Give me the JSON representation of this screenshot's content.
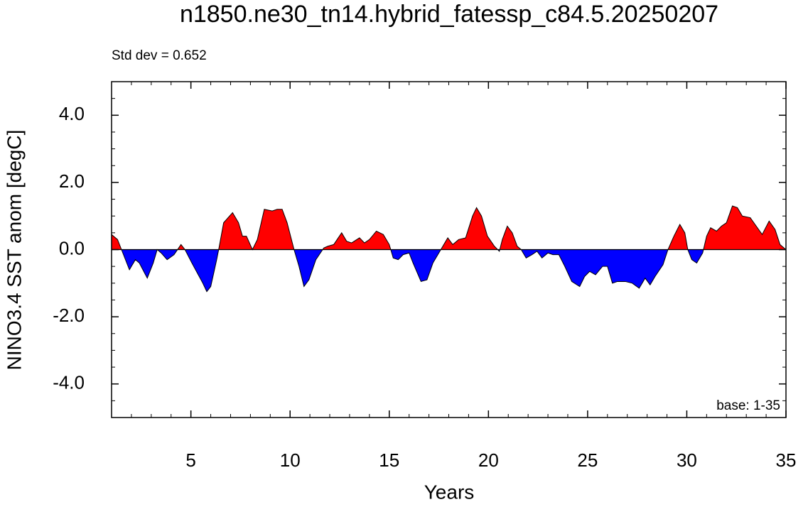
{
  "chart_data": {
    "type": "area",
    "title": "n1850.ne30_tn14.hybrid_fatessp_c84.5.20250207",
    "subtitle": "Std dev = 0.652",
    "annotation": "base: 1-35",
    "x_label": "Years",
    "y_label": "NINO3.4 SST anom [degC]",
    "positive_color": "#ff0000",
    "negative_color": "#0000ff",
    "xlim": [
      1,
      35
    ],
    "xticks": [
      5,
      10,
      15,
      20,
      25,
      30,
      35
    ],
    "ylim": [
      -5,
      5
    ],
    "yticks": [
      {
        "value": -4,
        "label": "-4.0"
      },
      {
        "value": -2,
        "label": "-2.0"
      },
      {
        "value": 0,
        "label": "0.0"
      },
      {
        "value": 2,
        "label": "2.0"
      },
      {
        "value": 4,
        "label": "4.0"
      }
    ],
    "x": [
      1.0,
      1.3,
      1.5,
      1.9,
      2.2,
      2.4,
      2.8,
      3.1,
      3.3,
      3.5,
      3.8,
      4.15,
      4.5,
      4.7,
      5.05,
      5.6,
      5.8,
      6.0,
      6.3,
      6.4,
      6.65,
      7.1,
      7.4,
      7.6,
      7.8,
      8.1,
      8.35,
      8.7,
      9.1,
      9.35,
      9.6,
      9.85,
      10.2,
      10.45,
      10.7,
      10.95,
      11.3,
      11.7,
      11.9,
      12.2,
      12.6,
      12.85,
      13.1,
      13.5,
      13.75,
      14.0,
      14.35,
      14.7,
      15.0,
      15.2,
      15.45,
      15.7,
      16.0,
      16.2,
      16.6,
      16.9,
      17.2,
      17.5,
      17.7,
      17.95,
      18.2,
      18.5,
      18.85,
      19.2,
      19.4,
      19.65,
      19.95,
      20.3,
      20.55,
      20.7,
      20.95,
      21.2,
      21.45,
      21.65,
      21.9,
      22.2,
      22.45,
      22.7,
      23.0,
      23.25,
      23.55,
      23.85,
      24.2,
      24.6,
      24.85,
      25.1,
      25.4,
      25.75,
      26.0,
      26.25,
      26.5,
      26.9,
      27.25,
      27.6,
      27.9,
      28.15,
      28.4,
      28.8,
      29.05,
      29.35,
      29.65,
      29.9,
      30.05,
      30.25,
      30.5,
      30.8,
      31.0,
      31.2,
      31.5,
      31.75,
      32.0,
      32.3,
      32.55,
      32.8,
      33.2,
      33.5,
      33.8,
      34.15,
      34.45,
      34.7,
      35.0
    ],
    "values": [
      0.45,
      0.3,
      0.0,
      -0.6,
      -0.3,
      -0.4,
      -0.85,
      -0.4,
      0.0,
      -0.1,
      -0.3,
      -0.15,
      0.15,
      0.0,
      -0.4,
      -1.0,
      -1.25,
      -1.1,
      -0.3,
      0.0,
      0.8,
      1.1,
      0.8,
      0.4,
      0.4,
      0.0,
      0.3,
      1.2,
      1.15,
      1.2,
      1.2,
      0.8,
      0.0,
      -0.5,
      -1.1,
      -0.9,
      -0.3,
      0.05,
      0.1,
      0.15,
      0.5,
      0.25,
      0.2,
      0.35,
      0.2,
      0.3,
      0.55,
      0.45,
      0.15,
      -0.25,
      -0.3,
      -0.15,
      -0.1,
      -0.4,
      -0.95,
      -0.9,
      -0.4,
      -0.1,
      0.1,
      0.35,
      0.15,
      0.3,
      0.35,
      1.0,
      1.25,
      1.0,
      0.4,
      0.1,
      -0.05,
      0.3,
      0.7,
      0.5,
      0.1,
      0.0,
      -0.25,
      -0.15,
      -0.05,
      -0.25,
      -0.1,
      -0.15,
      -0.15,
      -0.5,
      -0.95,
      -1.1,
      -0.8,
      -0.65,
      -0.75,
      -0.5,
      -0.5,
      -1.0,
      -0.95,
      -0.95,
      -1.0,
      -1.15,
      -0.85,
      -1.05,
      -0.8,
      -0.45,
      0.0,
      0.4,
      0.75,
      0.5,
      0.0,
      -0.3,
      -0.4,
      -0.1,
      0.4,
      0.65,
      0.55,
      0.7,
      0.8,
      1.3,
      1.25,
      1.0,
      0.95,
      0.7,
      0.45,
      0.85,
      0.6,
      0.15,
      0.0
    ]
  }
}
